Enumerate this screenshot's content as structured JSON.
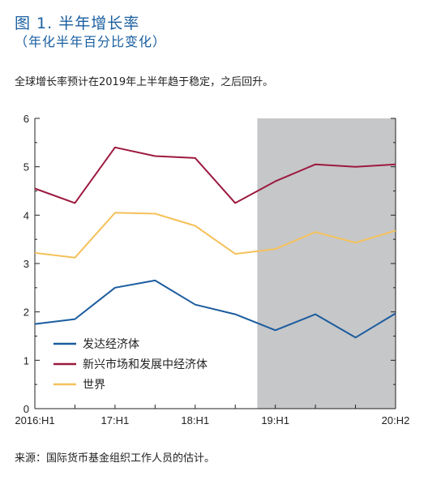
{
  "header": {
    "title": "图 1. 半年增长率",
    "subtitle": "（年化半年百分比变化）",
    "note": "全球增长率预计在2019年上半年趋于稳定，之后回升。"
  },
  "footer": {
    "source": "来源：国际货币基金组织工作人员的估计。"
  },
  "chart_data": {
    "type": "line",
    "x": [
      "2016:H1",
      "2016:H2",
      "17:H1",
      "17:H2",
      "18:H1",
      "18:H2",
      "19:H1",
      "19:H2",
      "20:H1",
      "20:H2"
    ],
    "x_tick_labels": [
      {
        "index": 0,
        "label": "2016:H1"
      },
      {
        "index": 2,
        "label": "17:H1"
      },
      {
        "index": 4,
        "label": "18:H1"
      },
      {
        "index": 6,
        "label": "19:H1"
      },
      {
        "index": 9,
        "label": "20:H2"
      }
    ],
    "ylim": [
      0,
      6
    ],
    "y_ticks": [
      0,
      1,
      2,
      3,
      4,
      5,
      6
    ],
    "projection_shading": {
      "from_x": "18:H2",
      "from_x_offset": 0.55,
      "to_x": "20:H2",
      "color": "#c6c7c9"
    },
    "legend_placement": "lower-left",
    "series": [
      {
        "name": "发达经济体",
        "color": "#1b5c9e",
        "values": [
          1.75,
          1.85,
          2.5,
          2.65,
          2.15,
          1.95,
          1.62,
          1.95,
          1.47,
          1.97
        ]
      },
      {
        "name": "新兴市场和发展中经济体",
        "color": "#9c1a3f",
        "values": [
          4.55,
          4.25,
          5.4,
          5.22,
          5.18,
          4.25,
          4.7,
          5.05,
          5.0,
          5.05
        ]
      },
      {
        "name": "世界",
        "color": "#f5c15a",
        "values": [
          3.22,
          3.12,
          4.05,
          4.03,
          3.78,
          3.2,
          3.3,
          3.65,
          3.43,
          3.68
        ]
      }
    ]
  }
}
